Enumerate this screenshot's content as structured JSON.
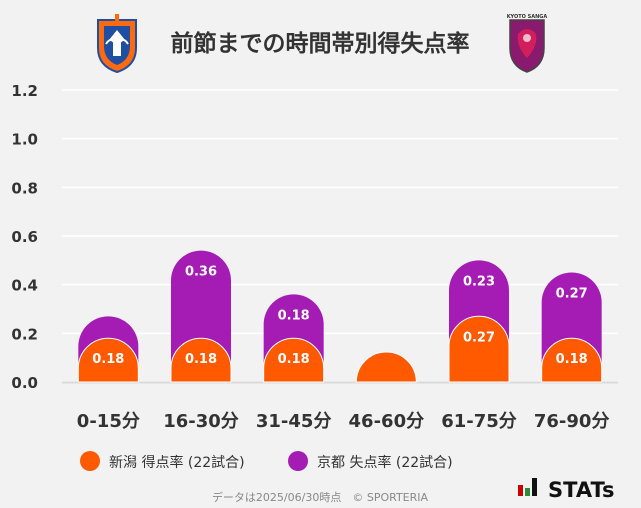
{
  "title": "前節までの時間帯別得失点率",
  "chart_data": {
    "type": "bar",
    "categories": [
      "0-15分",
      "16-30分",
      "31-45分",
      "46-60分",
      "61-75分",
      "76-90分"
    ],
    "series": [
      {
        "name": "新潟 得点率 (22試合)",
        "color": "#ff5a00",
        "values": [
          0.18,
          0.18,
          0.18,
          0.045,
          0.27,
          0.18
        ],
        "labels": [
          "0.18",
          "0.18",
          "0.18",
          "",
          "0.27",
          "0.18"
        ]
      },
      {
        "name": "京都 失点率 (22試合)",
        "color": "#a51cb4",
        "values": [
          0.27,
          0.54,
          0.36,
          0.09,
          0.5,
          0.45
        ],
        "labels": [
          "",
          "0.36",
          "0.18",
          "",
          "0.23",
          "0.27"
        ]
      }
    ],
    "yticks": [
      "0.0",
      "0.2",
      "0.4",
      "0.6",
      "0.8",
      "1.0",
      "1.2"
    ],
    "ylim": [
      0,
      1.2
    ],
    "grid": true,
    "legend_position": "bottom"
  },
  "footer": {
    "note": "データは2025/06/30時点　© SPORTERIA",
    "brand": "STATs"
  },
  "logos": {
    "left": "albirex-niigata-emblem",
    "right": "kyoto-sanga-emblem",
    "right_text": "KYOTO SANGA"
  }
}
